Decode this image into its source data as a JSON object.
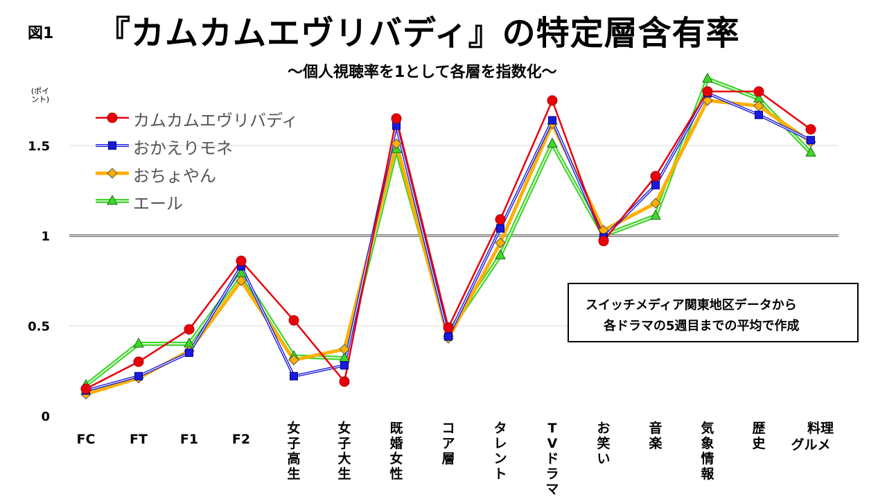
{
  "header": {
    "fig_label": "図1",
    "title": "『カムカムエヴリバディ』の特定層含有率",
    "subtitle": "〜個人視聴率を1として各層を指数化〜",
    "unit_line1": "(ポイ",
    "unit_line2": "ント)"
  },
  "note": {
    "line1": "スイッチメディア関東地区データから",
    "line2": "各ドラマの5週目までの平均で作成"
  },
  "chart_data": {
    "type": "line",
    "title": "『カムカムエヴリバディ』の特定層含有率",
    "subtitle": "〜個人視聴率を1として各層を指数化〜",
    "ylabel": "(ポイント)",
    "ylim": [
      0,
      1.85
    ],
    "yticks": [
      0,
      0.5,
      1,
      1.5
    ],
    "ytick_labels": [
      "0",
      "0.5",
      "1",
      "1.5"
    ],
    "reference_line": 1,
    "grid": "horizontal",
    "legend_position": "top-left",
    "categories": [
      "FC",
      "FT",
      "F1",
      "F2",
      "女子高生",
      "女子大生",
      "既婚女性",
      "コア層",
      "タレント",
      "TVドラマ",
      "お笑い",
      "音楽",
      "気象情報",
      "歴史",
      "料理グルメ"
    ],
    "category_lines": [
      [
        "FC"
      ],
      [
        "FT"
      ],
      [
        "F1"
      ],
      [
        "F2"
      ],
      [
        "女",
        "子",
        "高",
        "生"
      ],
      [
        "女",
        "子",
        "大",
        "生"
      ],
      [
        "既",
        "婚",
        "女",
        "性"
      ],
      [
        "コ",
        "ア",
        "層"
      ],
      [
        "タ",
        "レ",
        "ン",
        "ト"
      ],
      [
        "T",
        "V",
        "ド",
        "ラ",
        "マ"
      ],
      [
        "お",
        "笑",
        "い"
      ],
      [
        "音",
        "楽"
      ],
      [
        "気",
        "象",
        "情",
        "報"
      ],
      [
        "歴",
        "史"
      ],
      [
        "料理",
        "グルメ"
      ]
    ],
    "series": [
      {
        "name": "カムカムエヴリバディ",
        "color": "#e8000b",
        "marker": "circle",
        "values": [
          0.15,
          0.3,
          0.48,
          0.86,
          0.53,
          0.19,
          1.65,
          0.49,
          1.09,
          1.75,
          0.97,
          1.33,
          1.8,
          1.8,
          1.59
        ]
      },
      {
        "name": "おかえりモネ",
        "color": "#1a1adc",
        "marker": "square",
        "values": [
          0.14,
          0.22,
          0.35,
          0.83,
          0.22,
          0.28,
          1.61,
          0.44,
          1.04,
          1.64,
          0.99,
          1.28,
          1.79,
          1.67,
          1.53
        ]
      },
      {
        "name": "おちょやん",
        "color": "#ffb000",
        "marker": "diamond",
        "values": [
          0.12,
          0.21,
          0.36,
          0.75,
          0.31,
          0.37,
          1.51,
          0.43,
          0.96,
          1.62,
          1.03,
          1.18,
          1.75,
          1.72,
          1.52
        ]
      },
      {
        "name": "エール",
        "color": "#3fd62a",
        "marker": "triangle",
        "values": [
          0.17,
          0.4,
          0.4,
          0.79,
          0.33,
          0.32,
          1.48,
          0.46,
          0.89,
          1.51,
          1.0,
          1.11,
          1.87,
          1.76,
          1.46
        ]
      }
    ]
  }
}
